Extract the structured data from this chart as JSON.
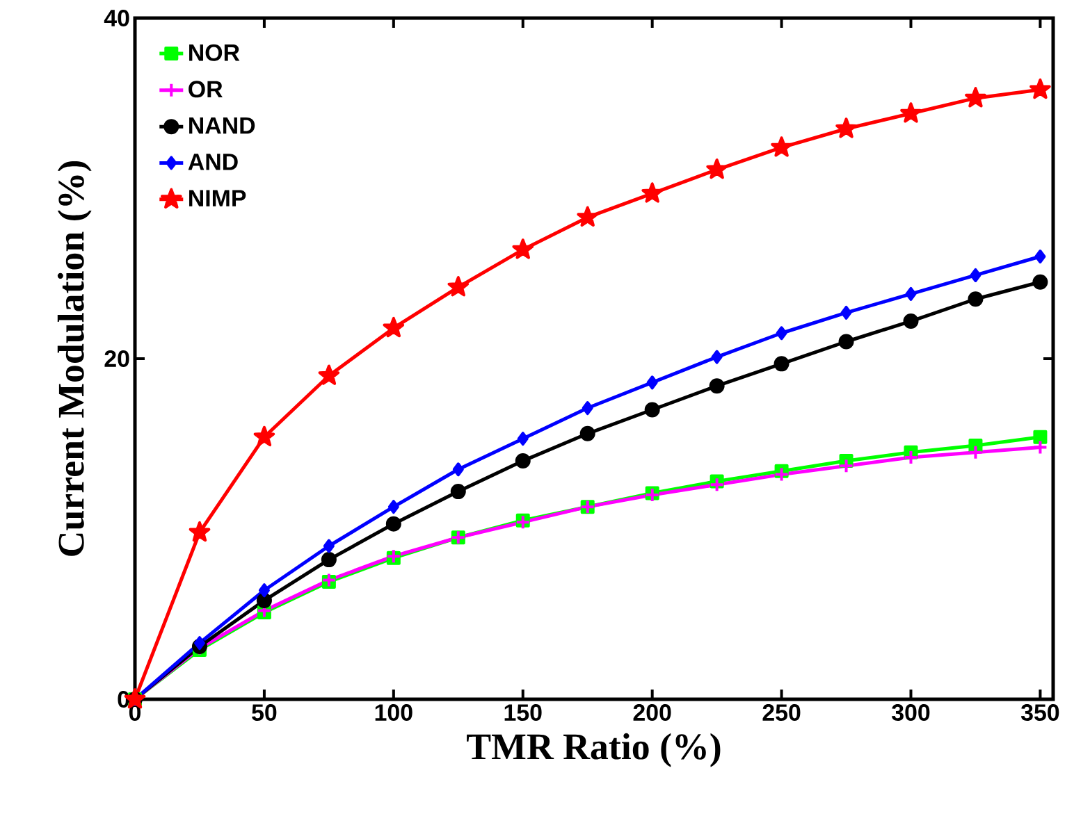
{
  "chart_data": {
    "type": "line",
    "xlabel": "TMR Ratio (%)",
    "ylabel": "Current Modulation (%)",
    "x": [
      0,
      25,
      50,
      75,
      100,
      125,
      150,
      175,
      200,
      225,
      250,
      275,
      300,
      325,
      350
    ],
    "series": [
      {
        "name": "NOR",
        "color": "#00ff00",
        "marker": "square",
        "values": [
          0,
          2.9,
          5.1,
          6.9,
          8.3,
          9.5,
          10.5,
          11.3,
          12.1,
          12.8,
          13.4,
          14.0,
          14.5,
          14.9,
          15.4
        ]
      },
      {
        "name": "OR",
        "color": "#ff00ff",
        "marker": "plus",
        "values": [
          0,
          3.0,
          5.2,
          7.0,
          8.4,
          9.5,
          10.4,
          11.3,
          12.0,
          12.6,
          13.2,
          13.7,
          14.2,
          14.5,
          14.8
        ]
      },
      {
        "name": "NAND",
        "color": "#000000",
        "marker": "circle",
        "values": [
          0,
          3.1,
          5.8,
          8.2,
          10.3,
          12.2,
          14.0,
          15.6,
          17.0,
          18.4,
          19.7,
          21.0,
          22.2,
          23.5,
          24.5
        ]
      },
      {
        "name": "AND",
        "color": "#0000ff",
        "marker": "diamond",
        "values": [
          0,
          3.3,
          6.4,
          9.0,
          11.3,
          13.5,
          15.3,
          17.1,
          18.6,
          20.1,
          21.5,
          22.7,
          23.8,
          24.9,
          26.0
        ]
      },
      {
        "name": "NIMP",
        "color": "#ff0000",
        "marker": "star",
        "values": [
          0,
          9.8,
          15.4,
          19.0,
          21.8,
          24.2,
          26.4,
          28.3,
          29.7,
          31.1,
          32.4,
          33.5,
          34.4,
          35.3,
          35.8
        ]
      }
    ],
    "xlim": [
      0,
      355
    ],
    "ylim": [
      0,
      40
    ],
    "xticks": [
      0,
      50,
      100,
      150,
      200,
      250,
      300,
      350
    ],
    "yticks": [
      0,
      20,
      40
    ],
    "legend": "top left",
    "line_style": "solid"
  }
}
